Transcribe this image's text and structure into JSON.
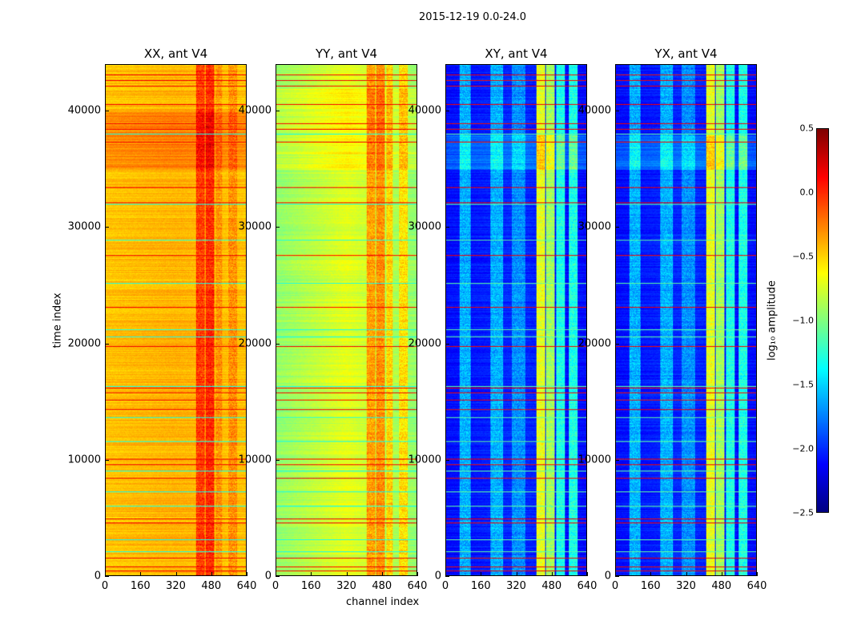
{
  "suptitle": "2015-12-19 0.0-24.0",
  "chart_data": [
    {
      "type": "heatmap",
      "title": "XX, ant V4",
      "xlabel": "",
      "ylabel": "time index",
      "xlim": [
        0,
        640
      ],
      "ylim": [
        0,
        44000
      ],
      "xticks": [
        "0",
        "160",
        "320",
        "480",
        "640"
      ],
      "yticks": [
        "0",
        "10000",
        "20000",
        "30000",
        "40000"
      ],
      "base": -0.4,
      "edge_base": -0.45,
      "bright_bands": [
        [
          410,
          450,
          -0.05
        ],
        [
          455,
          495,
          0.0
        ],
        [
          500,
          530,
          -0.3
        ],
        [
          560,
          600,
          -0.3
        ]
      ],
      "hot_time_range": [
        35000,
        40000,
        0.2
      ]
    },
    {
      "type": "heatmap",
      "title": "YY, ant V4",
      "xlabel": "channel index",
      "ylabel": "",
      "xlim": [
        0,
        640
      ],
      "ylim": [
        0,
        44000
      ],
      "xticks": [
        "0",
        "160",
        "320",
        "480",
        "640"
      ],
      "yticks": [
        "0",
        "10000",
        "20000",
        "30000",
        "40000"
      ],
      "base": -0.7,
      "edge_base": -0.95,
      "bright_bands": [
        [
          410,
          450,
          -0.35
        ],
        [
          455,
          495,
          -0.3
        ],
        [
          500,
          530,
          -0.5
        ],
        [
          560,
          600,
          -0.55
        ]
      ],
      "hot_time_range": [
        35000,
        42000,
        0.15
      ]
    },
    {
      "type": "heatmap",
      "title": "XY, ant V4",
      "xlabel": "",
      "ylabel": "",
      "xlim": [
        0,
        640
      ],
      "ylim": [
        0,
        44000
      ],
      "xticks": [
        "0",
        "160",
        "320",
        "480",
        "640"
      ],
      "yticks": [
        "0",
        "10000",
        "20000",
        "30000",
        "40000"
      ],
      "base": -2.0,
      "edge_base": -2.1,
      "bright_bands": [
        [
          60,
          110,
          -1.6
        ],
        [
          200,
          260,
          -1.6
        ],
        [
          300,
          360,
          -1.7
        ],
        [
          410,
          450,
          -0.7
        ],
        [
          455,
          495,
          -0.9
        ],
        [
          500,
          540,
          -1.3
        ],
        [
          560,
          600,
          -1.3
        ]
      ],
      "hot_time_range": [
        35000,
        38000,
        0.5
      ]
    },
    {
      "type": "heatmap",
      "title": "YX, ant V4",
      "xlabel": "",
      "ylabel": "",
      "xlim": [
        0,
        640
      ],
      "ylim": [
        0,
        44000
      ],
      "xticks": [
        "0",
        "160",
        "320",
        "480",
        "640"
      ],
      "yticks": [
        "0",
        "10000",
        "20000",
        "30000",
        "40000"
      ],
      "base": -2.0,
      "edge_base": -2.1,
      "bright_bands": [
        [
          60,
          110,
          -1.6
        ],
        [
          200,
          260,
          -1.6
        ],
        [
          300,
          360,
          -1.7
        ],
        [
          410,
          450,
          -0.7
        ],
        [
          455,
          495,
          -0.9
        ],
        [
          500,
          540,
          -1.3
        ],
        [
          560,
          600,
          -1.3
        ]
      ],
      "hot_time_range": [
        35000,
        38000,
        0.5
      ]
    }
  ],
  "flagged_rows_high": [
    43170,
    42700,
    42200,
    40600,
    38970,
    38480,
    37400,
    33460,
    32150,
    27600,
    23130,
    19760,
    16180,
    15770,
    15150,
    14320,
    10050,
    9540,
    8400,
    4890,
    4540,
    1520,
    760,
    410
  ],
  "flagged_rows_mid": [
    38100,
    32050,
    28900,
    25200,
    21200,
    20600,
    16300,
    13600,
    11600,
    9000,
    7200,
    6000,
    3100,
    2100
  ],
  "colorbar": {
    "label": "log₁₀ amplitude",
    "min": -2.5,
    "max": 0.5,
    "ticks": [
      "0.5",
      "0.0",
      "−0.5",
      "−1.0",
      "−1.5",
      "−2.0",
      "−2.5"
    ]
  }
}
